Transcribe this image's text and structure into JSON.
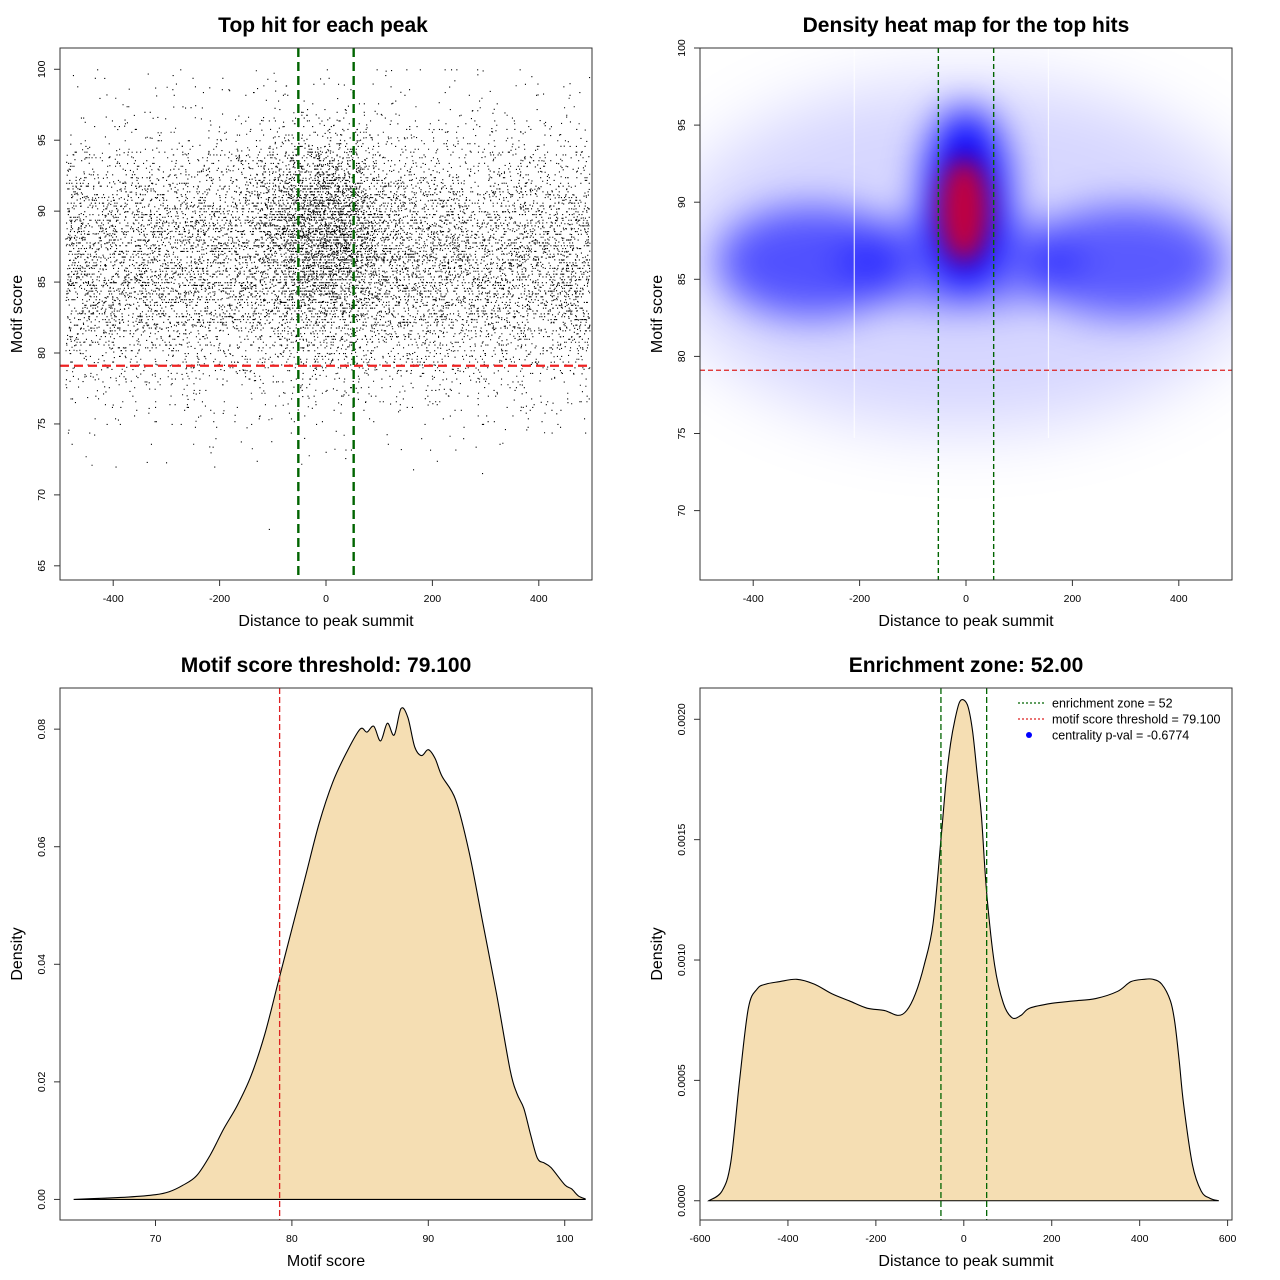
{
  "chart_data": [
    {
      "id": "scatter",
      "type": "scatter",
      "title": "Top hit for each peak",
      "xlabel": "Distance to peak summit",
      "ylabel": "Motif score",
      "xlim": [
        -500,
        500
      ],
      "ylim": [
        64,
        101.5
      ],
      "xticks": [
        -400,
        -200,
        0,
        200,
        400
      ],
      "yticks": [
        65,
        70,
        75,
        80,
        85,
        90,
        95,
        100
      ],
      "point_color": "#000000",
      "hline": {
        "y": 79.1,
        "color": "#ee2222"
      },
      "vlines": {
        "x": [
          -52,
          52
        ],
        "color": "#006400"
      }
    },
    {
      "id": "heatmap",
      "type": "heatmap",
      "title": "Density heat map for the top hits",
      "xlabel": "Distance to peak summit",
      "ylabel": "Motif score",
      "xlim": [
        -500,
        500
      ],
      "ylim": [
        65.5,
        100
      ],
      "xticks": [
        -400,
        -200,
        0,
        200,
        400
      ],
      "yticks": [
        70,
        75,
        80,
        85,
        90,
        95,
        100
      ],
      "colors": [
        "#ffffff",
        "#0000ff",
        "#ff0000"
      ],
      "hline": {
        "y": 79.1,
        "color": "#dd2222"
      },
      "vlines": {
        "x": [
          -52,
          52
        ],
        "color": "#006400"
      }
    },
    {
      "id": "score_density",
      "type": "area",
      "title": "Motif score threshold: 79.100",
      "xlabel": "Motif score",
      "ylabel": "Density",
      "xlim": [
        63,
        102
      ],
      "ylim": [
        -0.0035,
        0.087
      ],
      "xticks": [
        70,
        80,
        90,
        100
      ],
      "yticks": [
        0.0,
        0.02,
        0.04,
        0.06,
        0.08
      ],
      "ytick_labels": [
        "0.00",
        "0.02",
        "0.04",
        "0.06",
        "0.08"
      ],
      "fill": "#f5deb3",
      "vline": {
        "x": 79.1,
        "color": "#dd2222"
      },
      "x": [
        64,
        66,
        68,
        70,
        71,
        72,
        73,
        74,
        75,
        76,
        77,
        78,
        79,
        80,
        81,
        82,
        83,
        84,
        85,
        85.5,
        86,
        86.5,
        87,
        87.5,
        88,
        88.5,
        89,
        89.5,
        90,
        90.5,
        91,
        92,
        93,
        94,
        95,
        96,
        96.5,
        97,
        97.5,
        98,
        98.5,
        99,
        100,
        100.5,
        101,
        101.5
      ],
      "y": [
        0.0,
        0.0002,
        0.0004,
        0.0008,
        0.0013,
        0.0024,
        0.004,
        0.0075,
        0.012,
        0.016,
        0.021,
        0.028,
        0.037,
        0.046,
        0.055,
        0.064,
        0.071,
        0.076,
        0.08,
        0.0795,
        0.0805,
        0.078,
        0.081,
        0.079,
        0.0835,
        0.082,
        0.077,
        0.0755,
        0.0765,
        0.075,
        0.072,
        0.068,
        0.059,
        0.047,
        0.035,
        0.022,
        0.018,
        0.0155,
        0.011,
        0.007,
        0.0062,
        0.0054,
        0.0025,
        0.0018,
        0.0006,
        0.0001
      ]
    },
    {
      "id": "distance_density",
      "type": "area",
      "title": "Enrichment zone: 52.00",
      "xlabel": "Distance to peak summit",
      "ylabel": "Density",
      "xlim": [
        -600,
        610
      ],
      "ylim": [
        -8e-05,
        0.00213
      ],
      "xticks": [
        -600,
        -400,
        -200,
        0,
        200,
        400,
        600
      ],
      "yticks": [
        0.0,
        0.0005,
        0.001,
        0.0015,
        0.002
      ],
      "ytick_labels": [
        "0.0000",
        "0.0005",
        "0.0010",
        "0.0015",
        "0.0020"
      ],
      "fill": "#f5deb3",
      "vlines": {
        "x": [
          -52,
          52
        ],
        "color": "#006400"
      },
      "x": [
        -580,
        -550,
        -530,
        -510,
        -490,
        -470,
        -450,
        -420,
        -380,
        -340,
        -300,
        -260,
        -220,
        -180,
        -150,
        -130,
        -110,
        -90,
        -70,
        -52,
        -40,
        -30,
        -20,
        -10,
        0,
        10,
        20,
        30,
        40,
        52,
        70,
        90,
        110,
        130,
        150,
        200,
        250,
        300,
        350,
        380,
        410,
        430,
        450,
        470,
        480,
        490,
        500,
        520,
        540,
        560,
        580
      ],
      "y": [
        0.0,
        4e-05,
        0.00016,
        0.0005,
        0.0008,
        0.00088,
        0.0009,
        0.00091,
        0.00092,
        0.0009,
        0.00086,
        0.00083,
        0.0008,
        0.00079,
        0.00077,
        0.00079,
        0.00086,
        0.00098,
        0.00115,
        0.0015,
        0.00175,
        0.0019,
        0.002,
        0.00207,
        0.00208,
        0.00205,
        0.00195,
        0.00178,
        0.0016,
        0.00128,
        0.00098,
        0.00082,
        0.00076,
        0.00077,
        0.0008,
        0.00082,
        0.00083,
        0.00084,
        0.00087,
        0.00091,
        0.00092,
        0.00092,
        0.0009,
        0.00083,
        0.00074,
        0.00058,
        0.0004,
        0.00015,
        4e-05,
        1e-05,
        0.0
      ]
    }
  ],
  "legend": {
    "items": [
      {
        "label": "enrichment zone = 52",
        "color": "#006400",
        "kind": "line"
      },
      {
        "label": "motif score threshold = 79.100",
        "color": "#dd2222",
        "kind": "line"
      },
      {
        "label": "centrality p-val = -0.6774",
        "color": "#0000ff",
        "kind": "dot"
      }
    ]
  }
}
